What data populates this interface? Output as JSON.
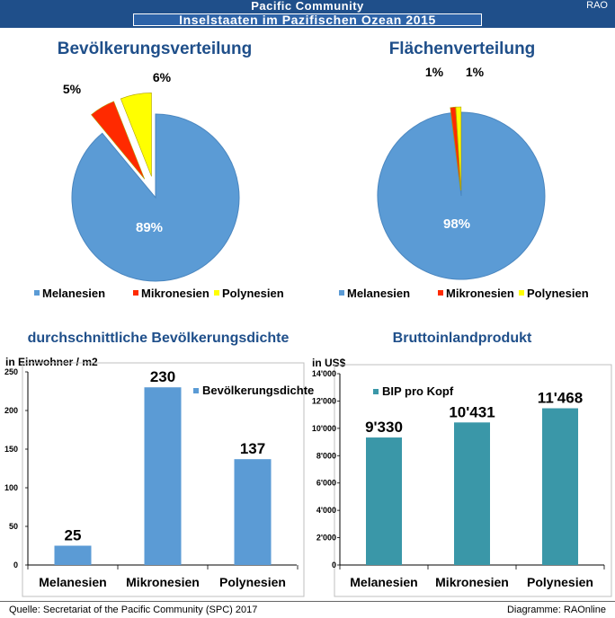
{
  "header": {
    "title": "Pacific Community",
    "badge": "RAO"
  },
  "subheader": {
    "title": "Inselstaaten im Pazifischen Ozean 2015"
  },
  "footer": {
    "source": "Quelle: Secretariat of the Pacific Community (SPC) 2017",
    "credit": "Diagramme: RAOnline"
  },
  "colors": {
    "blue": "#5b9bd5",
    "red": "#ff2a00",
    "yellow": "#ffff00",
    "teal": "#3a97a8",
    "title": "#1f4f8a"
  },
  "chart_data": [
    {
      "type": "pie",
      "title": "Bevölkerungsverteilung",
      "categories": [
        "Melanesien",
        "Mikronesien",
        "Polynesien"
      ],
      "values": [
        89,
        5,
        6
      ],
      "labels": [
        "89%",
        "5%",
        "6%"
      ],
      "legend": [
        "Melanesien",
        "Mikronesien",
        "Polynesien"
      ],
      "legend_position": "bottom"
    },
    {
      "type": "pie",
      "title": "Flächenverteilung",
      "categories": [
        "Melanesien",
        "Mikronesien",
        "Polynesien"
      ],
      "values": [
        98,
        1,
        1
      ],
      "labels": [
        "98%",
        "1%",
        "1%"
      ],
      "legend": [
        "Melanesien",
        "Mikronesien",
        "Polynesien"
      ],
      "legend_position": "bottom"
    },
    {
      "type": "bar",
      "title": "durchschnittliche Bevölkerungsdichte",
      "ylabel": "in Einwohner / m2",
      "categories": [
        "Melanesien",
        "Mikronesien",
        "Polynesien"
      ],
      "series": [
        {
          "name": "Bevölkerungsdichte",
          "values": [
            25,
            230,
            137
          ]
        }
      ],
      "value_labels": [
        "25",
        "230",
        "137"
      ],
      "ylim": [
        0,
        250
      ],
      "yticks": [
        "0",
        "50",
        "100",
        "150",
        "200",
        "250"
      ],
      "yticks_values": [
        0,
        50,
        100,
        150,
        200,
        250
      ],
      "legend_position": "top-right"
    },
    {
      "type": "bar",
      "title": "Bruttoinlandprodukt",
      "ylabel": "in US$",
      "categories": [
        "Melanesien",
        "Mikronesien",
        "Polynesien"
      ],
      "series": [
        {
          "name": "BIP pro Kopf",
          "values": [
            9330,
            10431,
            11468
          ]
        }
      ],
      "value_labels": [
        "9'330",
        "10'431",
        "11'468"
      ],
      "ylim": [
        0,
        14000
      ],
      "yticks": [
        "0",
        "2'000",
        "4'000",
        "6'000",
        "8'000",
        "10'000",
        "12'000",
        "14'000"
      ],
      "yticks_values": [
        0,
        2000,
        4000,
        6000,
        8000,
        10000,
        12000,
        14000
      ],
      "legend_position": "top-left"
    }
  ]
}
